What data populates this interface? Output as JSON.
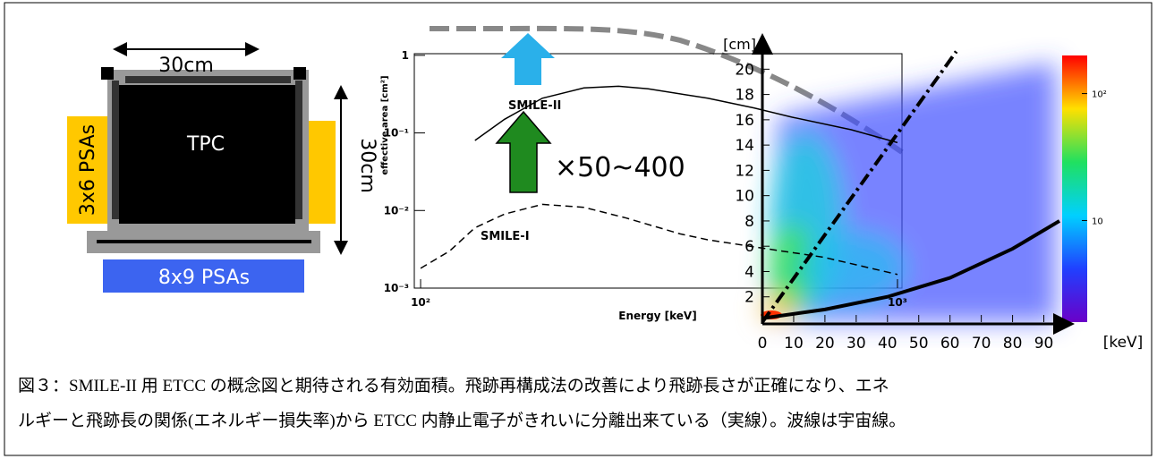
{
  "diagram": {
    "width_label": "30cm",
    "height_label": "30cm",
    "center_label": "TPC",
    "side_label": "3x6 PSAs",
    "bottom_label": "8x9 PSAs"
  },
  "effective_area_plot": {
    "type": "line",
    "log_x": true,
    "log_y": true,
    "ylabel": "effective area [cm²]",
    "xlabel": "Energy [keV]",
    "annotation": "×50~400",
    "xlim": [
      97,
      1022
    ],
    "ylim": [
      0.001,
      1.05
    ],
    "xticks": [
      {
        "value": 100,
        "label": "10²"
      },
      {
        "value": 1000,
        "label": "10³"
      }
    ],
    "yticks": [
      {
        "value": 0.001,
        "label": "10⁻³"
      },
      {
        "value": 0.01,
        "label": "10⁻²"
      },
      {
        "value": 0.1,
        "label": "10⁻¹"
      },
      {
        "value": 1,
        "label": "1"
      }
    ],
    "series": [
      {
        "name": "SMILE-II",
        "color": "#000000",
        "dash": false,
        "x": [
          130,
          150,
          180,
          220,
          260,
          300,
          400,
          500,
          600,
          800,
          1000
        ],
        "values": [
          0.08,
          0.15,
          0.28,
          0.38,
          0.4,
          0.37,
          0.28,
          0.21,
          0.16,
          0.11,
          0.075
        ]
      },
      {
        "name": "SMILE-I",
        "color": "#000000",
        "dash": true,
        "x": [
          100,
          115,
          130,
          150,
          180,
          220,
          270,
          350,
          400,
          500,
          700,
          1000
        ],
        "values": [
          0.0018,
          0.003,
          0.006,
          0.009,
          0.012,
          0.011,
          0.008,
          0.005,
          0.0042,
          0.0034,
          0.0025,
          0.0015
        ]
      }
    ]
  },
  "track_plot": {
    "type": "line",
    "ylabel": "[cm]",
    "xlabel": "[keV]",
    "xlim": [
      0,
      97
    ],
    "ylim": [
      0,
      22.5
    ],
    "xticks": [
      0,
      10,
      20,
      30,
      40,
      50,
      60,
      70,
      80,
      90
    ],
    "yticks": [
      2,
      4,
      6,
      8,
      10,
      12,
      14,
      16,
      18,
      20
    ],
    "colorbar_ticks": [
      {
        "value": 10,
        "label": "10"
      },
      {
        "value": 100,
        "label": "10²"
      }
    ],
    "series": [
      {
        "color": "#000000",
        "dash": true,
        "x": [
          0,
          62
        ],
        "values": [
          0,
          21.4
        ]
      },
      {
        "color": "#000000",
        "dash": false,
        "x": [
          0,
          20,
          40,
          60,
          80,
          95
        ],
        "values": [
          0.3,
          1,
          2,
          3.5,
          5.8,
          8
        ]
      }
    ]
  },
  "caption": [
    "図３：SMILE-II 用 ETCC の概念図と期待される有効面積。飛跡再構成法の改善により飛跡長さが正確になり、エネ",
    "ルギーと飛跡長の関係(エネルギー損失率)から ETCC 内静止電子がきれいに分離出来ている（実線）。波線は宇宙線。"
  ]
}
